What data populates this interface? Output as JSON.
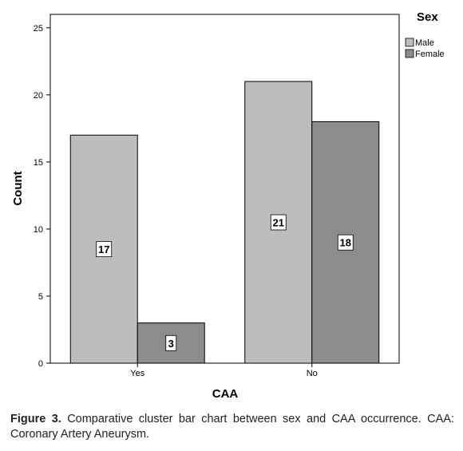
{
  "chart_data": {
    "type": "bar",
    "categories": [
      "Yes",
      "No"
    ],
    "series": [
      {
        "name": "Male",
        "values": [
          17,
          21
        ]
      },
      {
        "name": "Female",
        "values": [
          3,
          18
        ]
      }
    ],
    "data_labels": [
      [
        "17",
        "21"
      ],
      [
        "3",
        "18"
      ]
    ],
    "xlabel": "CAA",
    "ylabel": "Count",
    "ylim": [
      0,
      26
    ],
    "yticks": [
      0,
      5,
      10,
      15,
      20,
      25
    ],
    "grid": false,
    "legend_title": "Sex",
    "legend_position": "top-right",
    "colors": {
      "Male": "#bdbdbd",
      "Female": "#8c8c8c",
      "frame": "#000000"
    }
  },
  "caption": {
    "label": "Figure 3.",
    "text": "Comparative cluster bar chart between sex and CAA occurrence. CAA: Coronary Artery Aneurysm."
  }
}
